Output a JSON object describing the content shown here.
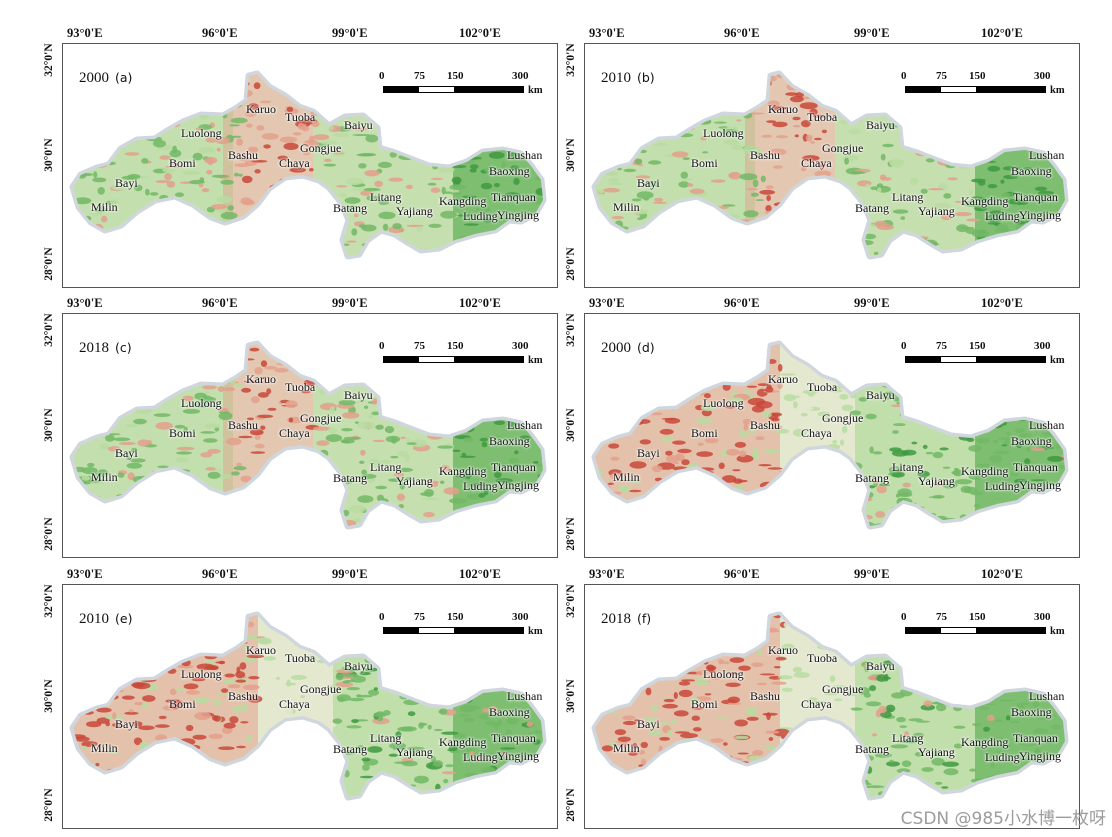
{
  "lon_labels": [
    "93°0'E",
    "96°0'E",
    "99°0'E",
    "102°0'E"
  ],
  "lat_labels": [
    "32°0'N",
    "30°0'N",
    "28°0'N"
  ],
  "scale_bar": {
    "ticks": [
      "0",
      "75",
      "150",
      "300"
    ],
    "unit": "km"
  },
  "panels": [
    {
      "year": "2000",
      "tag": "(a)",
      "has_scale": true,
      "theme": "reddish"
    },
    {
      "year": "2010",
      "tag": "(b)",
      "has_scale": true,
      "theme": "reddish"
    },
    {
      "year": "2018",
      "tag": "(c)",
      "has_scale": true,
      "theme": "reddish"
    },
    {
      "year": "2000",
      "tag": "(d)",
      "has_scale": true,
      "theme": "greenish"
    },
    {
      "year": "2010",
      "tag": "(e)",
      "has_scale": true,
      "theme": "greenish"
    },
    {
      "year": "2018",
      "tag": "(f)",
      "has_scale": true,
      "theme": "greenish"
    }
  ],
  "places": [
    "Karuo",
    "Tuoba",
    "Luolong",
    "Baiyu",
    "Bashu",
    "Gongjue",
    "Bomi",
    "Chaya",
    "Lushan",
    "Baoxing",
    "Bayi",
    "Tianquan",
    "Batang",
    "Litang",
    "Kangding",
    "Milin",
    "Yajiang",
    "Luding",
    "Yingjing"
  ],
  "colors": {
    "dark_green": "#3f9a3f",
    "green": "#72b966",
    "light_green": "#b8dca1",
    "pale": "#e4e8cf",
    "light_red": "#e3a08c",
    "red": "#c9483a",
    "outline": "#cfd6de"
  },
  "watermark": "CSDN @985小水博一枚呀"
}
